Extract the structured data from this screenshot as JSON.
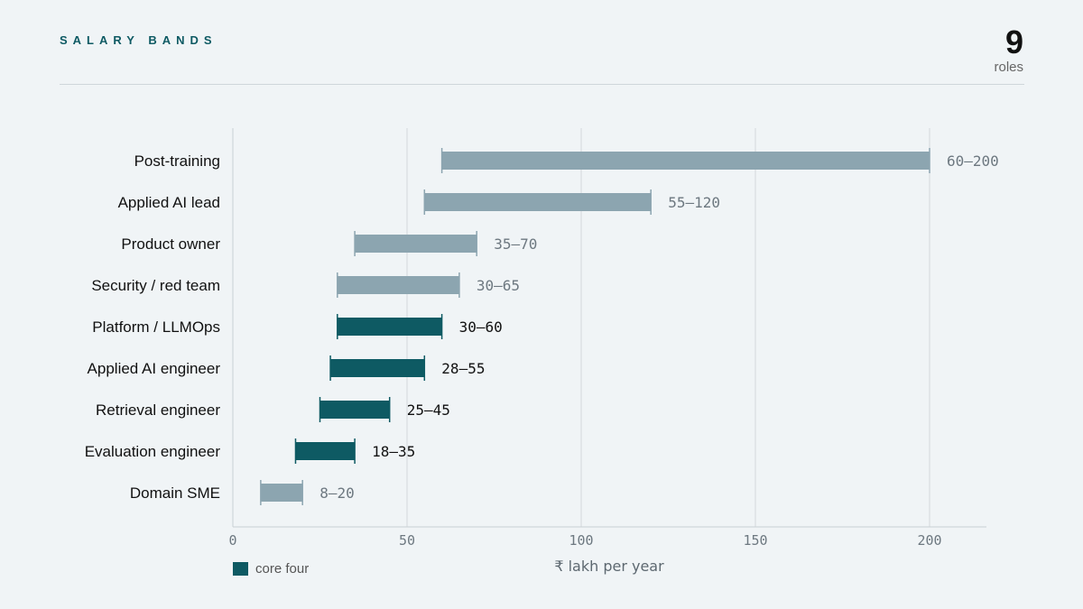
{
  "header": {
    "title": "SALARY BANDS",
    "count": "9",
    "count_label": "roles"
  },
  "legend": {
    "label": "core four",
    "color": "#0e5a63"
  },
  "colors": {
    "core": "#0e5a63",
    "other": "#8ca5b0",
    "core_label": "#111111",
    "other_label": "#6d7880"
  },
  "chart_data": {
    "type": "bar",
    "orientation": "horizontal",
    "title": "SALARY BANDS",
    "xlabel": "₹ lakh per year",
    "xlim": [
      0,
      216
    ],
    "xticks": [
      0,
      50,
      100,
      150,
      200
    ],
    "grid": true,
    "legend": "bottom-left",
    "bars": [
      {
        "category": "Post-training",
        "low": 60,
        "high": 200,
        "label": "60–200",
        "core": false
      },
      {
        "category": "Applied AI lead",
        "low": 55,
        "high": 120,
        "label": "55–120",
        "core": false
      },
      {
        "category": "Product owner",
        "low": 35,
        "high": 70,
        "label": "35–70",
        "core": false
      },
      {
        "category": "Security / red team",
        "low": 30,
        "high": 65,
        "label": "30–65",
        "core": false
      },
      {
        "category": "Platform / LLMOps",
        "low": 30,
        "high": 60,
        "label": "30–60",
        "core": true
      },
      {
        "category": "Applied AI engineer",
        "low": 28,
        "high": 55,
        "label": "28–55",
        "core": true
      },
      {
        "category": "Retrieval engineer",
        "low": 25,
        "high": 45,
        "label": "25–45",
        "core": true
      },
      {
        "category": "Evaluation engineer",
        "low": 18,
        "high": 35,
        "label": "18–35",
        "core": true
      },
      {
        "category": "Domain SME",
        "low": 8,
        "high": 20,
        "label": "8–20",
        "core": false
      }
    ]
  }
}
